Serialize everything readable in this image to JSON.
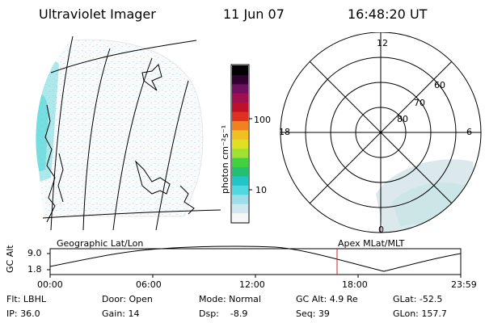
{
  "header": {
    "instrument": "Ultraviolet Imager",
    "date": "11 Jun 07",
    "time": "16:48:20 UT"
  },
  "colorbar": {
    "unit_label": "photon cm⁻²s⁻¹",
    "scale": "log",
    "ticks": [
      "100",
      "10"
    ],
    "colors": [
      "#f6f6f6",
      "#cfe8f0",
      "#9ddde8",
      "#4fd8e0",
      "#22c4c8",
      "#22c070",
      "#40d040",
      "#a0e030",
      "#e0e020",
      "#f0c020",
      "#f08020",
      "#e03020",
      "#c01028",
      "#a01050",
      "#701060",
      "#300030",
      "#000000"
    ]
  },
  "left_panel": {
    "caption": "Geographic Lat/Lon"
  },
  "right_panel": {
    "caption": "Apex MLat/MLT",
    "mlt_labels": {
      "top": "12",
      "bottom": "0",
      "left": "18",
      "right": "6"
    },
    "lat_labels": [
      "60",
      "70",
      "80"
    ]
  },
  "strip": {
    "ylabel": "GC Alt",
    "yticks": [
      "9.0",
      "1.8"
    ],
    "xticks": [
      "00:00",
      "06:00",
      "12:00",
      "18:00",
      "23:59"
    ],
    "marker_time": "16:48",
    "marker_color": "#cc2020"
  },
  "info": {
    "row1": {
      "flt": "Flt: LBHL",
      "door": "Door: Open",
      "mode": "Mode: Normal",
      "gcalt": "GC Alt: 4.9 Re",
      "glat": "GLat: -52.5"
    },
    "row2": {
      "ip": "IP: 36.0",
      "gain": "Gain: 14",
      "dsp": "Dsp:    -8.9",
      "seq": "Seq: 39",
      "glon": "GLon: 157.7"
    }
  }
}
